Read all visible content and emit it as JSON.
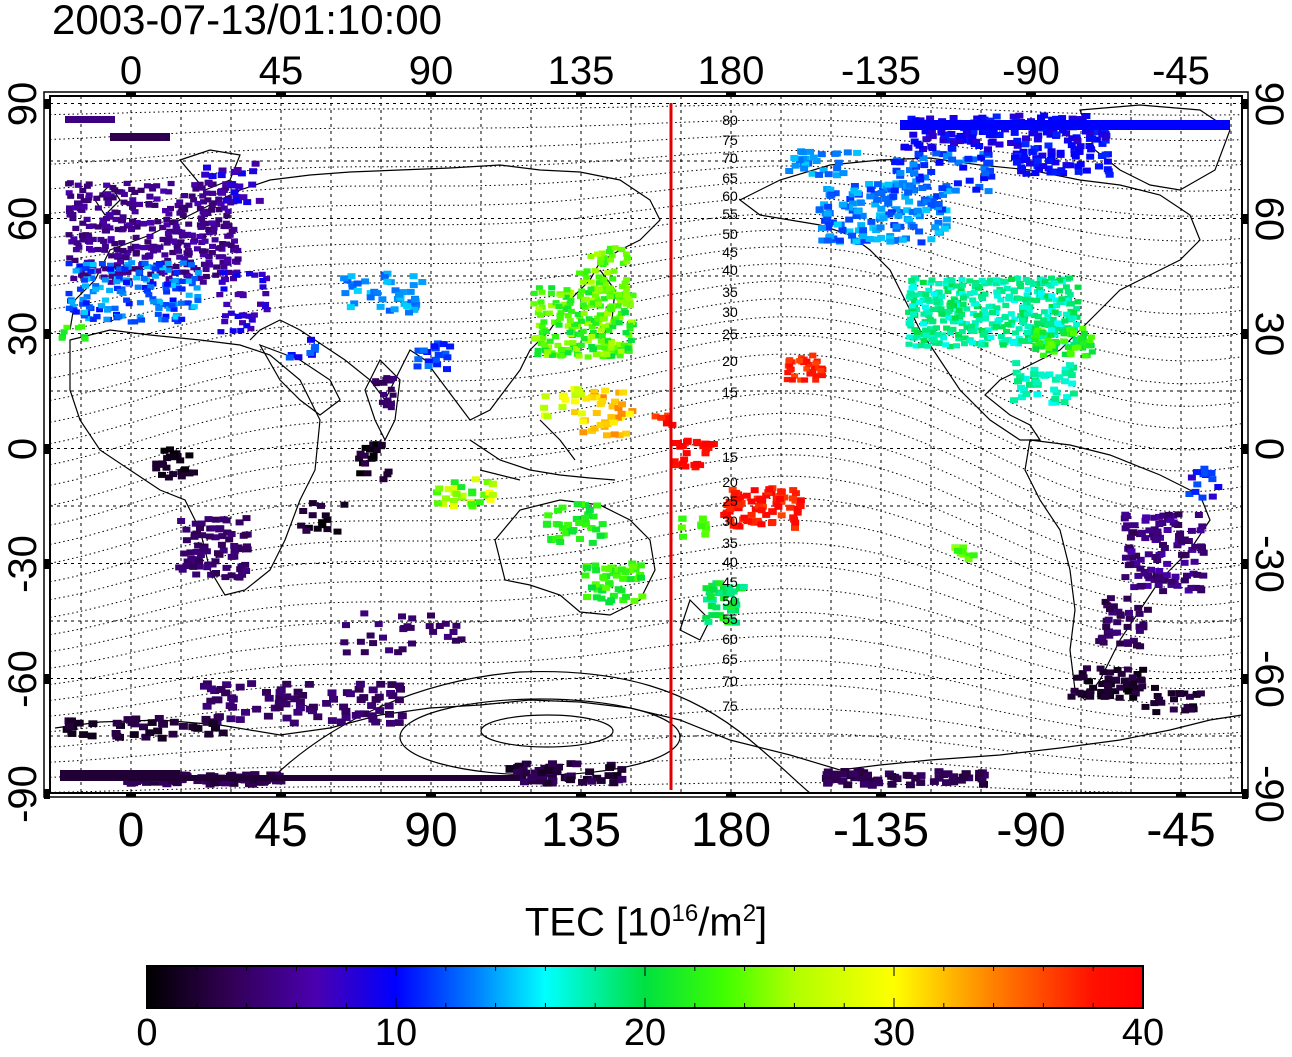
{
  "timestamp": "2003-07-13/01:10:00",
  "map": {
    "projection": "equirectangular",
    "lon_ticks_top": [
      "0",
      "45",
      "90",
      "135",
      "180",
      "-135",
      "-90",
      "-45"
    ],
    "lon_ticks_bottom": [
      "0",
      "45",
      "90",
      "135",
      "180",
      "-135",
      "-90",
      "-45"
    ],
    "lat_ticks_left": [
      "90",
      "60",
      "30",
      "0",
      "-30",
      "-60",
      "-90"
    ],
    "lat_ticks_right": [
      "90",
      "60",
      "30",
      "0",
      "-30",
      "-60",
      "-90"
    ],
    "meridian_line_color": "#e00000",
    "meridian_longitude": 162,
    "magnetic_latitude_labels": [
      "80",
      "75",
      "70",
      "65",
      "60",
      "55",
      "50",
      "45",
      "40",
      "35",
      "30",
      "25",
      "20",
      "15",
      "15",
      "20",
      "25",
      "30",
      "35",
      "40",
      "45",
      "50",
      "55",
      "60",
      "65",
      "70",
      "75"
    ]
  },
  "colorbar": {
    "title_main": "TEC  [10",
    "title_exp1": "16",
    "title_mid": "/m",
    "title_exp2": "2",
    "title_end": "]",
    "ticks": [
      "0",
      "10",
      "20",
      "30",
      "40"
    ],
    "min": 0,
    "max": 40
  }
}
